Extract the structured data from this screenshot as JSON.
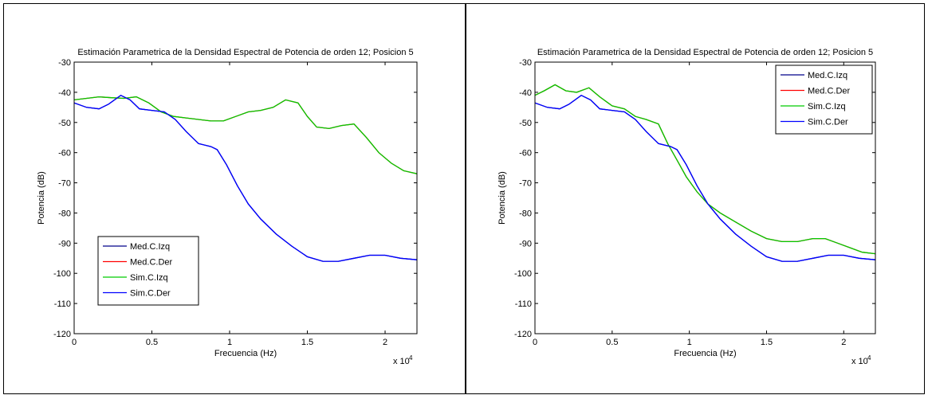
{
  "chart_data": [
    {
      "type": "line",
      "title": "Estimación Parametrica de la Densidad Espectral de Potencia de orden 12; Posicion 5",
      "xlabel": "Frecuencia (Hz)",
      "ylabel": "Potencia (dB)",
      "x_multiplier_label": "x 10",
      "x_multiplier_exp": "4",
      "xlim": [
        0,
        22050
      ],
      "ylim": [
        -120,
        -30
      ],
      "x_ticks": [
        0,
        5000,
        10000,
        15000,
        20000
      ],
      "x_tick_labels": [
        "0",
        "0.5",
        "1",
        "1.5",
        "2"
      ],
      "y_ticks": [
        -120,
        -110,
        -100,
        -90,
        -80,
        -70,
        -60,
        -50,
        -40,
        -30
      ],
      "y_tick_labels": [
        "-120",
        "-110",
        "-100",
        "-90",
        "-80",
        "-70",
        "-60",
        "-50",
        "-40",
        "-30"
      ],
      "grid": false,
      "legend_position": "bottom-left",
      "series": [
        {
          "name": "Med.C.Izq",
          "color": "#00008b",
          "x": [
            0,
            800,
            1600,
            2200,
            3000,
            3600,
            4200,
            5000,
            5800,
            6500,
            7200,
            8000,
            8800,
            9200,
            9800,
            10500,
            11200,
            12000,
            13000,
            14000,
            15000,
            16000,
            17000,
            18000,
            19000,
            20000,
            21000,
            22050
          ],
          "y": [
            -43.5,
            -45,
            -45.5,
            -44,
            -41,
            -42.5,
            -45.5,
            -46,
            -46.5,
            -49,
            -53,
            -57,
            -58,
            -59,
            -64,
            -71,
            -77,
            -82,
            -87,
            -91,
            -94.5,
            -96,
            -96,
            -95,
            -94,
            -94,
            -95,
            -95.5
          ]
        },
        {
          "name": "Med.C.Der",
          "color": "#ff0000",
          "x": [
            0,
            800,
            1600,
            2400,
            3200,
            4000,
            4800,
            5600,
            6400,
            7200,
            8000,
            8800,
            9600,
            10400,
            11200,
            12000,
            12800,
            13600,
            14400,
            15000,
            15600,
            16400,
            17200,
            18000,
            18800,
            19600,
            20400,
            21200,
            22050
          ],
          "y": [
            -42.5,
            -42,
            -41.5,
            -41.8,
            -42,
            -41.5,
            -43.5,
            -46.5,
            -48,
            -48.5,
            -49,
            -49.5,
            -49.5,
            -48,
            -46.5,
            -46,
            -45,
            -42.5,
            -43.5,
            -48,
            -51.5,
            -52,
            -51,
            -50.5,
            -55,
            -60,
            -63.5,
            -66,
            -67
          ]
        },
        {
          "name": "Sim.C.Izq",
          "color": "#00cc00",
          "x": [
            0,
            800,
            1600,
            2400,
            3200,
            4000,
            4800,
            5600,
            6400,
            7200,
            8000,
            8800,
            9600,
            10400,
            11200,
            12000,
            12800,
            13600,
            14400,
            15000,
            15600,
            16400,
            17200,
            18000,
            18800,
            19600,
            20400,
            21200,
            22050
          ],
          "y": [
            -42.5,
            -42,
            -41.5,
            -41.8,
            -42,
            -41.5,
            -43.5,
            -46.5,
            -48,
            -48.5,
            -49,
            -49.5,
            -49.5,
            -48,
            -46.5,
            -46,
            -45,
            -42.5,
            -43.5,
            -48,
            -51.5,
            -52,
            -51,
            -50.5,
            -55,
            -60,
            -63.5,
            -66,
            -67
          ]
        },
        {
          "name": "Sim.C.Der",
          "color": "#0000ff",
          "x": [
            0,
            800,
            1600,
            2200,
            3000,
            3600,
            4200,
            5000,
            5800,
            6500,
            7200,
            8000,
            8800,
            9200,
            9800,
            10500,
            11200,
            12000,
            13000,
            14000,
            15000,
            16000,
            17000,
            18000,
            19000,
            20000,
            21000,
            22050
          ],
          "y": [
            -43.5,
            -45,
            -45.5,
            -44,
            -41,
            -42.5,
            -45.5,
            -46,
            -46.5,
            -49,
            -53,
            -57,
            -58,
            -59,
            -64,
            -71,
            -77,
            -82,
            -87,
            -91,
            -94.5,
            -96,
            -96,
            -95,
            -94,
            -94,
            -95,
            -95.5
          ]
        }
      ]
    },
    {
      "type": "line",
      "title": "Estimación Parametrica de la Densidad Espectral de Potencia de orden 12; Posicion 5",
      "xlabel": "Frecuencia (Hz)",
      "ylabel": "Potencia (dB)",
      "x_multiplier_label": "x 10",
      "x_multiplier_exp": "4",
      "xlim": [
        0,
        22050
      ],
      "ylim": [
        -120,
        -30
      ],
      "x_ticks": [
        0,
        5000,
        10000,
        15000,
        20000
      ],
      "x_tick_labels": [
        "0",
        "0.5",
        "1",
        "1.5",
        "2"
      ],
      "y_ticks": [
        -120,
        -110,
        -100,
        -90,
        -80,
        -70,
        -60,
        -50,
        -40,
        -30
      ],
      "y_tick_labels": [
        "-120",
        "-110",
        "-100",
        "-90",
        "-80",
        "-70",
        "-60",
        "-50",
        "-40",
        "-30"
      ],
      "grid": false,
      "legend_position": "top-right",
      "series": [
        {
          "name": "Med.C.Izq",
          "color": "#00008b",
          "x": [
            0,
            800,
            1600,
            2200,
            3000,
            3600,
            4200,
            5000,
            5800,
            6500,
            7200,
            8000,
            8800,
            9200,
            9800,
            10500,
            11200,
            12000,
            13000,
            14000,
            15000,
            16000,
            17000,
            18000,
            19000,
            20000,
            21000,
            22050
          ],
          "y": [
            -43.5,
            -45,
            -45.5,
            -44,
            -41,
            -42.5,
            -45.5,
            -46,
            -46.5,
            -49,
            -53,
            -57,
            -58,
            -59,
            -64,
            -71,
            -77,
            -82,
            -87,
            -91,
            -94.5,
            -96,
            -96,
            -95,
            -94,
            -94,
            -95,
            -95.5
          ]
        },
        {
          "name": "Med.C.Der",
          "color": "#ff0000",
          "x": [
            0,
            600,
            1300,
            2000,
            2700,
            3500,
            4200,
            5000,
            5800,
            6500,
            7200,
            8000,
            8600,
            9200,
            9800,
            10500,
            11200,
            12000,
            13000,
            14000,
            15000,
            16000,
            17000,
            18000,
            18800,
            19600,
            20400,
            21200,
            22050
          ],
          "y": [
            -41,
            -39.5,
            -37.5,
            -39.5,
            -40,
            -38.5,
            -41.5,
            -44.5,
            -45.5,
            -48,
            -49,
            -50.5,
            -57,
            -62.5,
            -68,
            -73,
            -77,
            -80,
            -83,
            -86,
            -88.5,
            -89.5,
            -89.5,
            -88.5,
            -88.5,
            -90,
            -91.5,
            -93,
            -93.5
          ]
        },
        {
          "name": "Sim.C.Izq",
          "color": "#00cc00",
          "x": [
            0,
            600,
            1300,
            2000,
            2700,
            3500,
            4200,
            5000,
            5800,
            6500,
            7200,
            8000,
            8600,
            9200,
            9800,
            10500,
            11200,
            12000,
            13000,
            14000,
            15000,
            16000,
            17000,
            18000,
            18800,
            19600,
            20400,
            21200,
            22050
          ],
          "y": [
            -41,
            -39.5,
            -37.5,
            -39.5,
            -40,
            -38.5,
            -41.5,
            -44.5,
            -45.5,
            -48,
            -49,
            -50.5,
            -57,
            -62.5,
            -68,
            -73,
            -77,
            -80,
            -83,
            -86,
            -88.5,
            -89.5,
            -89.5,
            -88.5,
            -88.5,
            -90,
            -91.5,
            -93,
            -93.5
          ]
        },
        {
          "name": "Sim.C.Der",
          "color": "#0000ff",
          "x": [
            0,
            800,
            1600,
            2200,
            3000,
            3600,
            4200,
            5000,
            5800,
            6500,
            7200,
            8000,
            8800,
            9200,
            9800,
            10500,
            11200,
            12000,
            13000,
            14000,
            15000,
            16000,
            17000,
            18000,
            19000,
            20000,
            21000,
            22050
          ],
          "y": [
            -43.5,
            -45,
            -45.5,
            -44,
            -41,
            -42.5,
            -45.5,
            -46,
            -46.5,
            -49,
            -53,
            -57,
            -58,
            -59,
            -64,
            -71,
            -77,
            -82,
            -87,
            -91,
            -94.5,
            -96,
            -96,
            -95,
            -94,
            -94,
            -95,
            -95.5
          ]
        }
      ]
    }
  ]
}
